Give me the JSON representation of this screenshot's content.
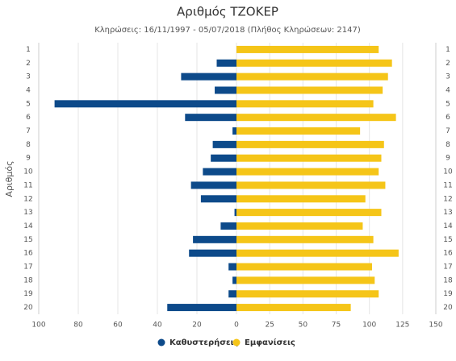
{
  "chart_data": {
    "type": "butterfly",
    "title": "Αριθμός ΤΖΟΚΕΡ",
    "subtitle": "Κληρώσεις: 16/11/1997 - 05/07/2018 (Πλήθος Κληρώσεων: 2147)",
    "y_label": "Αριθμός",
    "categories": [
      "1",
      "2",
      "3",
      "4",
      "5",
      "6",
      "7",
      "8",
      "9",
      "10",
      "11",
      "12",
      "13",
      "14",
      "15",
      "16",
      "17",
      "18",
      "19",
      "20"
    ],
    "series": [
      {
        "name": "Καθυστερήσεις",
        "color": "#0d4a8a",
        "side": "left",
        "values": [
          0,
          10,
          28,
          11,
          92,
          26,
          2,
          12,
          13,
          17,
          23,
          18,
          1,
          8,
          22,
          24,
          4,
          2,
          4,
          35
        ]
      },
      {
        "name": "Εμφανίσεις",
        "color": "#f5c518",
        "side": "right",
        "values": [
          107,
          117,
          114,
          110,
          103,
          120,
          93,
          111,
          109,
          107,
          112,
          97,
          109,
          95,
          103,
          122,
          102,
          104,
          107,
          86
        ]
      }
    ],
    "x2lim": [
      0,
      100
    ],
    "x2ticks": [
      20,
      40,
      60,
      80,
      100
    ],
    "xlim": [
      0,
      150
    ],
    "xticks": [
      0,
      25,
      50,
      75,
      100,
      125,
      150
    ],
    "grid": true,
    "legend": "bottom"
  }
}
